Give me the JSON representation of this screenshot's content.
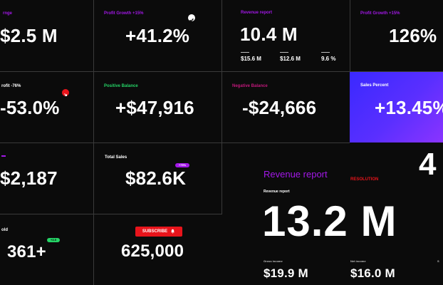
{
  "cells": {
    "c1": {
      "label": "rnge",
      "value": "$2.5 M"
    },
    "c2": {
      "label": "Profit Growth +15%",
      "value": "+41.2%"
    },
    "c3": {
      "label": "Revenue report",
      "value": "10.4 M",
      "stats": [
        "$15.6 M",
        "$12.6 M",
        "9.6 %"
      ]
    },
    "c4": {
      "label": "Profit Growth +15%",
      "value": "126%"
    },
    "c5": {
      "label": "rofit -76%",
      "value": "-53.0%"
    },
    "c6": {
      "label": "Positive Balance",
      "value": "+$47,916"
    },
    "c7": {
      "label": "Negative Balance",
      "value": "-$24,666"
    },
    "c8": {
      "label": "Sales Percent",
      "value": "+13.45%"
    },
    "c9": {
      "label": "",
      "value": "$2,187"
    },
    "c10": {
      "label": "Total Sales",
      "badge": "+75%",
      "value": "$82.6K"
    },
    "c11": {
      "label": "old",
      "badge": "+3.5",
      "value": "361+"
    },
    "c12": {
      "button_label": "SUBSCRIBE",
      "value": "625,000"
    },
    "revenue": {
      "title": "Revenue report",
      "tag": "RESOLUTION",
      "sublabel": "Revenue report",
      "value": "13.2 M",
      "partial_digit": "4",
      "stats": [
        {
          "label": "Gross income",
          "value": "$19.9 M"
        },
        {
          "label": "Net income",
          "value": "$16.0 M"
        },
        {
          "label": "S",
          "value": ""
        }
      ]
    }
  },
  "colors": {
    "background": "#0b0b0b",
    "purple": "#a318e8",
    "magenta": "#c0187a",
    "green": "#25d366",
    "red": "#e8141b",
    "sales_gradient_start": "#3a29ff",
    "sales_gradient_end": "#8a34ff"
  },
  "icons": [
    "check-icon",
    "trend-down-icon",
    "bell-icon"
  ]
}
